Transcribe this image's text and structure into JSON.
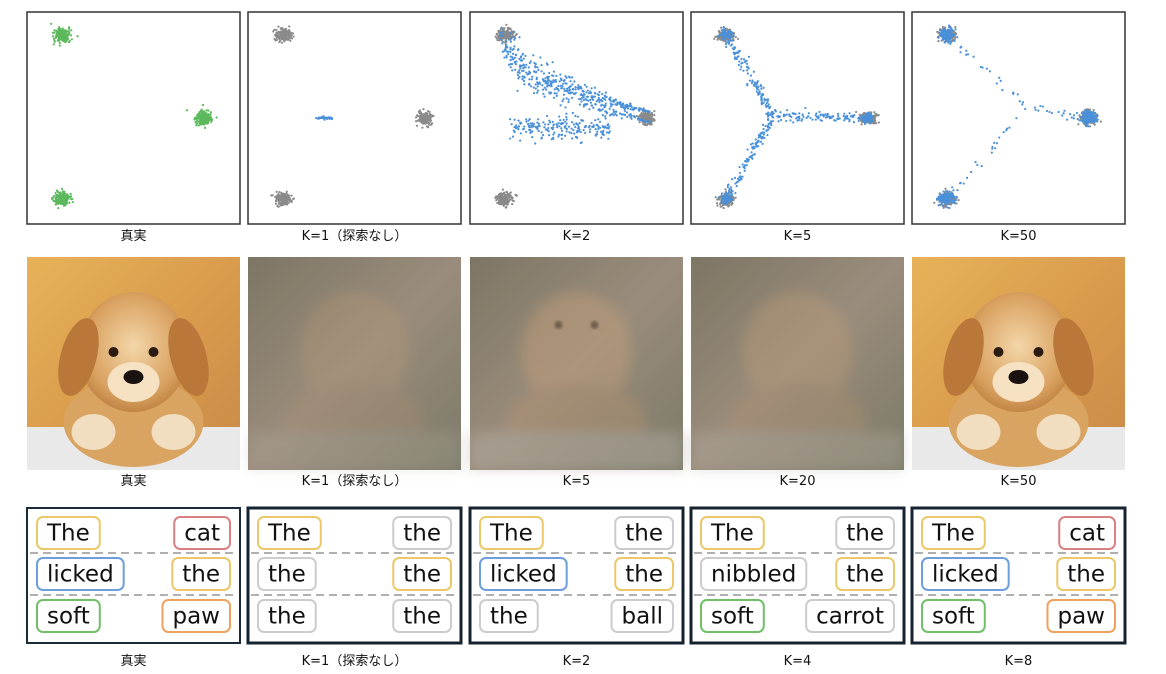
{
  "rows": [
    {
      "captions": [
        "真実",
        "K=1（探索なし）",
        "K=2",
        "K=5",
        "K=50"
      ]
    },
    {
      "captions": [
        "真実",
        "K=1（探索なし）",
        "K=5",
        "K=20",
        "K=50"
      ]
    },
    {
      "captions": [
        "真実",
        "K=1（探索なし）",
        "K=2",
        "K=4",
        "K=8"
      ],
      "panels": [
        [
          [
            {
              "text": "The",
              "color": "#ecc86a"
            },
            {
              "text": "cat",
              "color": "#d98080"
            }
          ],
          [
            {
              "text": "licked",
              "color": "#6c9fdc"
            },
            {
              "text": "the",
              "color": "#ecc86a"
            }
          ],
          [
            {
              "text": "soft",
              "color": "#72bf6a"
            },
            {
              "text": "paw",
              "color": "#efa25e"
            }
          ]
        ],
        [
          [
            {
              "text": "The",
              "color": "#ecc86a"
            },
            {
              "text": "the",
              "color": "#cccccc"
            }
          ],
          [
            {
              "text": "the",
              "color": "#cccccc"
            },
            {
              "text": "the",
              "color": "#ecc86a"
            }
          ],
          [
            {
              "text": "the",
              "color": "#cccccc"
            },
            {
              "text": "the",
              "color": "#cccccc"
            }
          ]
        ],
        [
          [
            {
              "text": "The",
              "color": "#ecc86a"
            },
            {
              "text": "the",
              "color": "#cccccc"
            }
          ],
          [
            {
              "text": "licked",
              "color": "#6c9fdc"
            },
            {
              "text": "the",
              "color": "#ecc86a"
            }
          ],
          [
            {
              "text": "the",
              "color": "#cccccc"
            },
            {
              "text": "ball",
              "color": "#cccccc"
            }
          ]
        ],
        [
          [
            {
              "text": "The",
              "color": "#ecc86a"
            },
            {
              "text": "the",
              "color": "#cccccc"
            }
          ],
          [
            {
              "text": "nibbled",
              "color": "#cccccc"
            },
            {
              "text": "the",
              "color": "#ecc86a"
            }
          ],
          [
            {
              "text": "soft",
              "color": "#72bf6a"
            },
            {
              "text": "carrot",
              "color": "#cccccc"
            }
          ]
        ],
        [
          [
            {
              "text": "The",
              "color": "#ecc86a"
            },
            {
              "text": "cat",
              "color": "#d98080"
            }
          ],
          [
            {
              "text": "licked",
              "color": "#6c9fdc"
            },
            {
              "text": "the",
              "color": "#ecc86a"
            }
          ],
          [
            {
              "text": "soft",
              "color": "#72bf6a"
            },
            {
              "text": "paw",
              "color": "#efa25e"
            }
          ]
        ]
      ]
    }
  ]
}
